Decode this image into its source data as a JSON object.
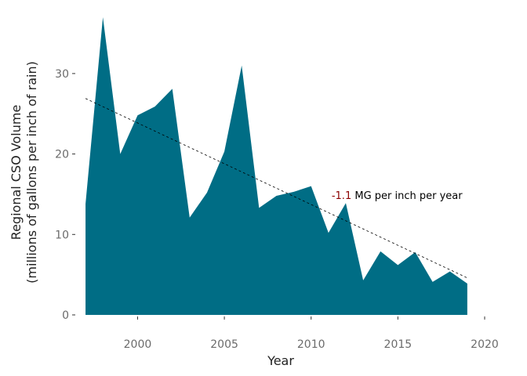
{
  "chart_data": {
    "type": "area",
    "title": "",
    "xlabel": "Year",
    "ylabel_line1": "Regional CSO Volume",
    "ylabel_line2": "(millions of gallons per inch of rain)",
    "xlim": [
      1996.5,
      2020
    ],
    "ylim": [
      0,
      37
    ],
    "x_ticks": [
      2000,
      2005,
      2010,
      2015,
      2020
    ],
    "y_ticks": [
      0,
      10,
      20,
      30
    ],
    "grid": false,
    "series": [
      {
        "x": [
          1997,
          1998,
          1999,
          2000,
          2001,
          2002,
          2003,
          2004,
          2005,
          2006,
          2007,
          2008,
          2009,
          2010,
          2011,
          2012,
          2013,
          2014,
          2015,
          2016,
          2017,
          2018,
          2019
        ],
        "values": [
          13.8,
          37.0,
          20.0,
          24.8,
          25.9,
          28.1,
          12.1,
          15.2,
          20.3,
          31.0,
          13.3,
          14.8,
          15.3,
          16.0,
          10.2,
          13.9,
          4.3,
          7.9,
          6.2,
          7.8,
          4.1,
          5.4,
          3.9
        ],
        "color": "#006d85"
      }
    ],
    "trendline": {
      "x": [
        1997,
        2019
      ],
      "y": [
        26.9,
        4.6
      ],
      "color": "#000000",
      "style": "dashed"
    },
    "annotation": {
      "prefix": "-1.1",
      "suffix": " MG per inch per year",
      "x": 2011,
      "y": 14.8,
      "prefix_color": "#8b0000",
      "suffix_color": "#000000"
    }
  }
}
